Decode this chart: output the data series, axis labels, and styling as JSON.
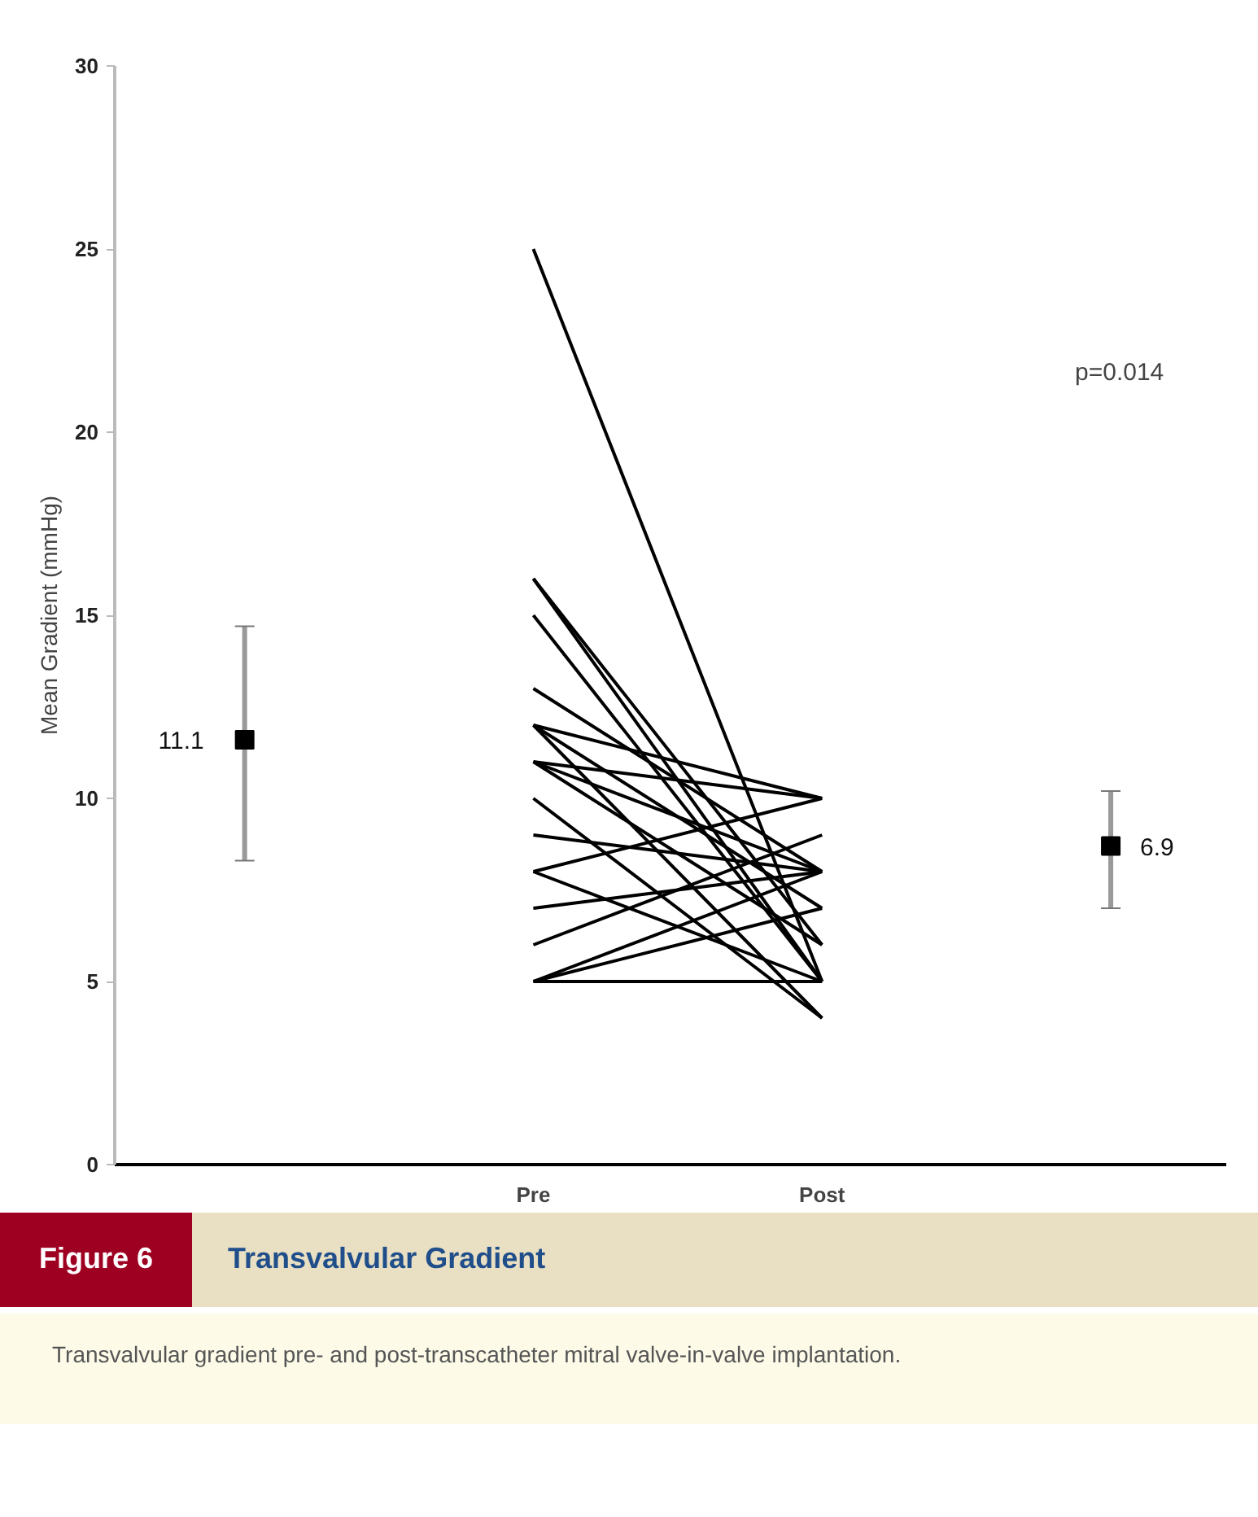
{
  "chart_data": {
    "type": "line",
    "title": "Transvalvular Gradient",
    "subtitle": "Transvalvular gradient pre- and post-transcatheter mitral valve-in-valve implantation.",
    "ylabel": "Mean Gradient (mmHg)",
    "categories": [
      null,
      "Pre",
      "Post",
      null
    ],
    "ylim": [
      0,
      30
    ],
    "yticks": [
      0,
      5,
      10,
      15,
      20,
      25,
      30
    ],
    "grid": false,
    "marker": "none",
    "line_style": "solid",
    "series": [
      {
        "color": "#000000",
        "values": [
          null,
          25,
          5,
          null
        ]
      },
      {
        "color": "#000000",
        "values": [
          null,
          16,
          6,
          null
        ]
      },
      {
        "color": "#000000",
        "values": [
          null,
          16,
          5,
          null
        ]
      },
      {
        "color": "#000000",
        "values": [
          null,
          15,
          5,
          null
        ]
      },
      {
        "color": "#000000",
        "values": [
          null,
          13,
          8,
          null
        ]
      },
      {
        "color": "#000000",
        "values": [
          null,
          12,
          7,
          null
        ]
      },
      {
        "color": "#000000",
        "values": [
          null,
          12,
          10,
          null
        ]
      },
      {
        "color": "#000000",
        "values": [
          null,
          12,
          4,
          null
        ]
      },
      {
        "color": "#000000",
        "values": [
          null,
          11,
          10,
          null
        ]
      },
      {
        "color": "#000000",
        "values": [
          null,
          11,
          8,
          null
        ]
      },
      {
        "color": "#000000",
        "values": [
          null,
          11,
          6,
          null
        ]
      },
      {
        "color": "#000000",
        "values": [
          null,
          10,
          4,
          null
        ]
      },
      {
        "color": "#000000",
        "values": [
          null,
          9,
          8,
          null
        ]
      },
      {
        "color": "#000000",
        "values": [
          null,
          8,
          10,
          null
        ]
      },
      {
        "color": "#000000",
        "values": [
          null,
          8,
          5,
          null
        ]
      },
      {
        "color": "#000000",
        "values": [
          null,
          7,
          8,
          null
        ]
      },
      {
        "color": "#000000",
        "values": [
          null,
          6,
          9,
          null
        ]
      },
      {
        "color": "#000000",
        "values": [
          null,
          5,
          8,
          null
        ]
      },
      {
        "color": "#000000",
        "values": [
          null,
          5,
          5,
          null
        ]
      },
      {
        "color": "#000000",
        "values": [
          null,
          5,
          7,
          null
        ]
      },
      {
        "type": "scatter",
        "marker": "square",
        "color": "#000000",
        "values": [
          11.6,
          null,
          null,
          8.7
        ],
        "errors": [
          [
            8.3,
            14.7
          ],
          null,
          null,
          [
            7.0,
            10.2
          ]
        ]
      }
    ],
    "annotations": [
      "11.1",
      "6.9",
      "p=0.014",
      "Figure 6"
    ]
  }
}
